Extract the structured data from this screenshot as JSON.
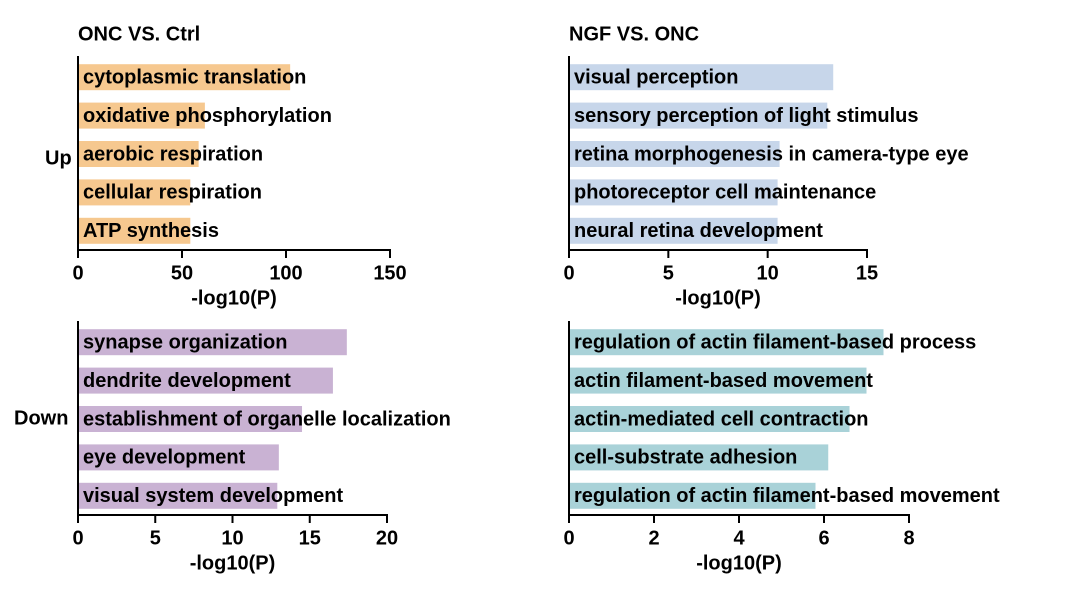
{
  "figure": {
    "row_labels": [
      "Up",
      "Down"
    ]
  },
  "chart_data": [
    {
      "type": "bar",
      "orientation": "horizontal",
      "title": "ONC VS. Ctrl",
      "categories": [
        "cytoplasmic translation",
        "oxidative phosphorylation",
        "aerobic respiration",
        "cellular respiration",
        "ATP synthesis"
      ],
      "values": [
        102,
        61,
        58,
        54,
        54
      ],
      "xlabel": "-log10(P)",
      "xlim": [
        0,
        150
      ],
      "xticks": [
        "0",
        "50",
        "100",
        "150"
      ],
      "color": "#f6c88f"
    },
    {
      "type": "bar",
      "orientation": "horizontal",
      "title": "NGF VS. ONC",
      "categories": [
        "visual perception",
        "sensory perception of light stimulus",
        "retina morphogenesis in camera-type eye",
        "photoreceptor cell maintenance",
        "neural retina development"
      ],
      "values": [
        13.3,
        13.0,
        10.6,
        10.5,
        10.5
      ],
      "xlabel": "-log10(P)",
      "xlim": [
        0,
        15
      ],
      "xticks": [
        "0",
        "5",
        "10",
        "15"
      ],
      "color": "#c7d6ea"
    },
    {
      "type": "bar",
      "orientation": "horizontal",
      "title": "",
      "categories": [
        "synapse organization",
        "dendrite development",
        "establishment of organelle localization",
        "eye development",
        "visual system development"
      ],
      "values": [
        17.4,
        16.5,
        14.5,
        13.0,
        12.9
      ],
      "xlabel": "-log10(P)",
      "xlim": [
        0,
        20
      ],
      "xticks": [
        "0",
        "5",
        "10",
        "15",
        "20"
      ],
      "color": "#c9b2d3"
    },
    {
      "type": "bar",
      "orientation": "horizontal",
      "title": "",
      "categories": [
        "regulation of actin filament-based process",
        "actin filament-based movement",
        "actin-mediated cell contraction",
        "cell-substrate adhesion",
        "regulation of actin filament-based movement"
      ],
      "values": [
        7.4,
        7.0,
        6.6,
        6.1,
        5.8
      ],
      "xlabel": "-log10(P)",
      "xlim": [
        0,
        8
      ],
      "xticks": [
        "0",
        "2",
        "4",
        "6",
        "8"
      ],
      "color": "#a9d2d8"
    }
  ]
}
